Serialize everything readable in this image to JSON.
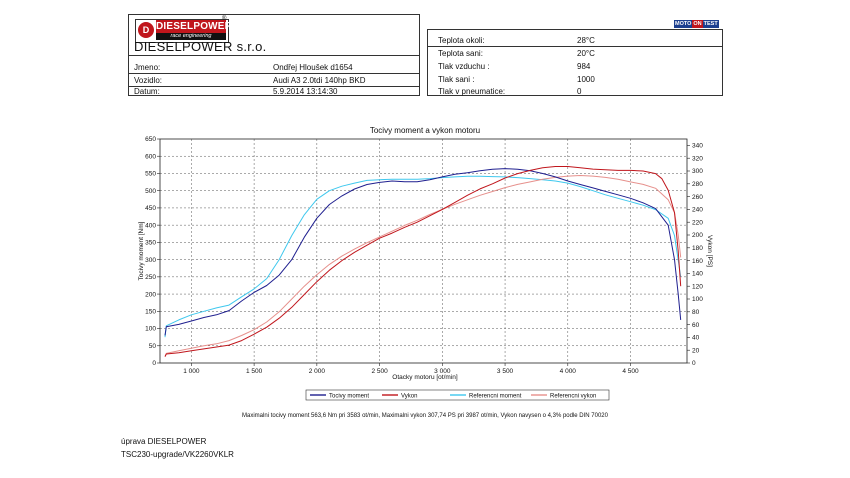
{
  "header": {
    "logo_title": "DIESELPOWER",
    "logo_sub": "race engineering",
    "logo_symbol": "D",
    "logo_reg": "®",
    "company": "DIESELPOWER s.r.o.",
    "info": [
      {
        "label": "Jmeno:",
        "value": "Ondřej Hloušek d1654"
      },
      {
        "label": "Vozidlo:",
        "value": "Audi A3 2.0tdi 140hp BKD"
      },
      {
        "label": "Datum:",
        "value": "5.9.2014 13:14:30"
      }
    ],
    "conditions": [
      {
        "label": "Teplota okoli:",
        "value": "28°C"
      },
      {
        "label": "Teplota sani:",
        "value": "20°C"
      },
      {
        "label": "Tlak vzduchu :",
        "value": "984"
      },
      {
        "label": "Tlak sani :",
        "value": "1000"
      },
      {
        "label": "Tlak v pneumatice:",
        "value": "0"
      }
    ],
    "moto_logo": {
      "part1": "MOTO",
      "part2": "ON",
      "part3": "TEST"
    }
  },
  "chart_data": {
    "type": "line",
    "title": "Tocivy moment a vykon motoru",
    "xlabel": "Otacky motoru [ot/min]",
    "ylabel": "Tocivy moment [Nm]",
    "y2label": "Vykon [PS]",
    "xlim": [
      750,
      4950
    ],
    "ylim": [
      0,
      650
    ],
    "y2lim": [
      0,
      350
    ],
    "x_ticks": [
      1000,
      1500,
      2000,
      2500,
      3000,
      3500,
      4000,
      4500
    ],
    "x_tick_labels": [
      "1 000",
      "1 500",
      "2 000",
      "2 500",
      "3 000",
      "3 500",
      "4 000",
      "4 500"
    ],
    "y_ticks": [
      0,
      50,
      100,
      150,
      200,
      250,
      300,
      350,
      400,
      450,
      500,
      550,
      600,
      650
    ],
    "y2_ticks": [
      0,
      20,
      40,
      60,
      80,
      100,
      120,
      140,
      160,
      180,
      200,
      220,
      240,
      260,
      280,
      300,
      320,
      340
    ],
    "grid": true,
    "legend_position": "bottom",
    "series": [
      {
        "name": "Tocivy moment",
        "axis": "left",
        "color": "#1f1f8f",
        "x": [
          790,
          800,
          900,
          1000,
          1100,
          1200,
          1300,
          1400,
          1500,
          1600,
          1700,
          1800,
          1900,
          2000,
          2100,
          2200,
          2300,
          2400,
          2500,
          2600,
          2700,
          2800,
          2900,
          3000,
          3100,
          3200,
          3300,
          3400,
          3500,
          3600,
          3700,
          3800,
          3900,
          4000,
          4100,
          4200,
          4300,
          4400,
          4500,
          4600,
          4700,
          4800,
          4850,
          4880,
          4900
        ],
        "y": [
          80,
          105,
          112,
          122,
          132,
          140,
          152,
          180,
          205,
          225,
          255,
          300,
          365,
          420,
          460,
          485,
          505,
          518,
          524,
          528,
          526,
          526,
          532,
          540,
          548,
          552,
          558,
          562,
          564,
          562,
          558,
          550,
          540,
          528,
          518,
          508,
          498,
          488,
          478,
          465,
          448,
          400,
          300,
          200,
          125
        ]
      },
      {
        "name": "Vykon",
        "axis": "right",
        "color": "#c0161c",
        "x": [
          790,
          800,
          900,
          1000,
          1100,
          1200,
          1300,
          1400,
          1500,
          1600,
          1700,
          1800,
          1900,
          2000,
          2100,
          2200,
          2300,
          2400,
          2500,
          2600,
          2700,
          2800,
          2900,
          3000,
          3100,
          3200,
          3300,
          3400,
          3500,
          3600,
          3700,
          3800,
          3900,
          4000,
          4100,
          4200,
          4300,
          4400,
          4500,
          4600,
          4700,
          4750,
          4800,
          4850,
          4880,
          4900
        ],
        "y": [
          10,
          14,
          16,
          19,
          22,
          25,
          28,
          35,
          45,
          56,
          70,
          87,
          107,
          127,
          145,
          160,
          173,
          184,
          195,
          203,
          212,
          220,
          230,
          240,
          251,
          262,
          272,
          280,
          289,
          296,
          301,
          305,
          307,
          307,
          305,
          303,
          302,
          301,
          301,
          300,
          296,
          288,
          270,
          235,
          175,
          120
        ]
      },
      {
        "name": "Referencni moment",
        "axis": "left",
        "color": "#3fc8ee",
        "x": [
          790,
          800,
          900,
          1000,
          1100,
          1200,
          1300,
          1400,
          1500,
          1600,
          1700,
          1800,
          1900,
          2000,
          2100,
          2200,
          2300,
          2400,
          2500,
          2600,
          2700,
          2800,
          2900,
          3000,
          3100,
          3200,
          3300,
          3400,
          3500,
          3600,
          3700,
          3800,
          3900,
          4000,
          4100,
          4200,
          4300,
          4400,
          4500,
          4600,
          4700,
          4800,
          4850,
          4900
        ],
        "y": [
          75,
          108,
          125,
          140,
          150,
          160,
          168,
          192,
          215,
          245,
          300,
          370,
          430,
          475,
          500,
          513,
          522,
          530,
          532,
          533,
          533,
          533,
          535,
          538,
          540,
          542,
          542,
          541,
          540,
          538,
          535,
          532,
          528,
          522,
          512,
          500,
          488,
          478,
          468,
          458,
          445,
          420,
          370,
          250
        ]
      },
      {
        "name": "Referencni vykon",
        "axis": "right",
        "color": "#e6908c",
        "x": [
          790,
          800,
          900,
          1000,
          1100,
          1200,
          1300,
          1400,
          1500,
          1600,
          1700,
          1800,
          1900,
          2000,
          2100,
          2200,
          2300,
          2400,
          2500,
          2600,
          2700,
          2800,
          2900,
          3000,
          3100,
          3200,
          3300,
          3400,
          3500,
          3600,
          3700,
          3800,
          3900,
          4000,
          4100,
          4200,
          4300,
          4400,
          4500,
          4600,
          4700,
          4800,
          4850,
          4880,
          4900
        ],
        "y": [
          10,
          15,
          19,
          23,
          27,
          30,
          35,
          43,
          52,
          64,
          80,
          100,
          120,
          138,
          154,
          167,
          178,
          188,
          197,
          206,
          215,
          223,
          232,
          240,
          248,
          255,
          262,
          268,
          274,
          279,
          283,
          287,
          290,
          292,
          293,
          292,
          290,
          287,
          283,
          279,
          273,
          255,
          235,
          200,
          165
        ]
      }
    ],
    "summary": "Maximalni tocivy moment 563,6 Nm pri 3583 ot/min,  Maximalni vykon 307,74 PS pri 3987 ot/min,  Vykon navysen o 4,3% podle DIN 70020"
  },
  "footer": {
    "line1": "úprava DIESELPOWER",
    "line2": "TSC230-upgrade/VK2260VKLR"
  }
}
